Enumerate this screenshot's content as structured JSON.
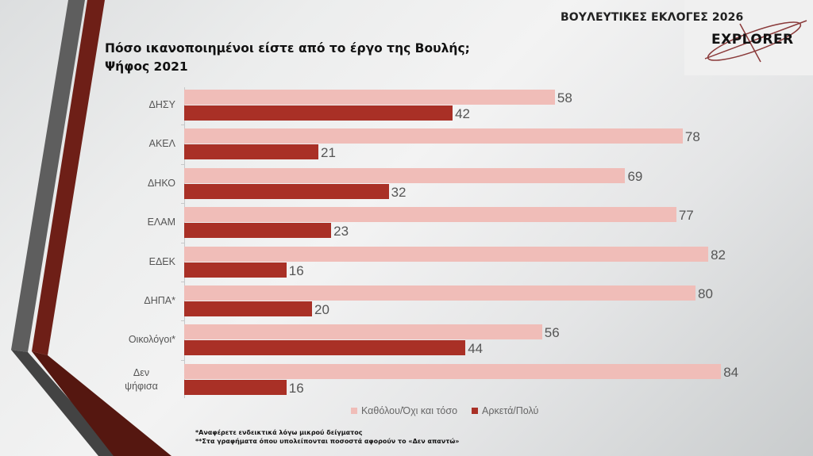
{
  "header": {
    "title": "ΒΟΥΛΕΥΤΙΚΕΣ ΕΚΛΟΓΕΣ 2026",
    "logo_text": "EXPLORER",
    "logo_icon": "explorer-logo-icon"
  },
  "colors": {
    "series_light": "#f0bdb8",
    "series_dark": "#a93026",
    "stripe_gray": "#5e5e5e",
    "stripe_red": "#6e1f17"
  },
  "chart_data": {
    "type": "bar",
    "orientation": "horizontal",
    "title": "Πόσο ικανοποιημένοι είστε από το έργο της Βουλής;",
    "subtitle": "Ψήφος  2021",
    "xlabel": "",
    "ylabel": "",
    "xlim": [
      0,
      100
    ],
    "grid": false,
    "categories": [
      "ΔΗΣΥ",
      "ΑΚΕΛ",
      "ΔΗΚΟ",
      "ΕΛΑΜ",
      "ΕΔΕΚ",
      "ΔΗΠΑ*",
      "Οικολόγοι*",
      "Δεν ψήφισα"
    ],
    "series": [
      {
        "name": "Καθόλου/Όχι και τόσο",
        "color": "#f0bdb8",
        "values": [
          58,
          78,
          69,
          77,
          82,
          80,
          56,
          84
        ]
      },
      {
        "name": "Αρκετά/Πολύ",
        "color": "#a93026",
        "values": [
          42,
          21,
          32,
          23,
          16,
          20,
          44,
          16
        ]
      }
    ],
    "legend_position": "bottom-center",
    "data_labels": true
  },
  "footnotes": [
    "*Αναφέρετε ενδεικτικά λόγω μικρού δείγματος",
    "**Στα γραφήματα όπου υπολείπονται ποσοστά αφορούν το «Δεν απαντώ»"
  ]
}
